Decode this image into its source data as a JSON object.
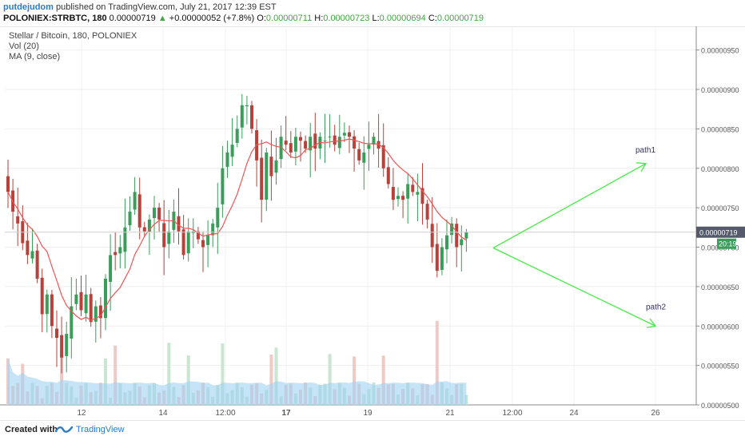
{
  "header": {
    "author": "putdejudom",
    "published_text": "published on TradingView.com, July 21, 2017 12:39 EST",
    "symbol": "POLONIEX:STRBTC, 180",
    "last": "0.00000719",
    "change_arrow": "▲",
    "change": "+0.00000052 (+7.8%)",
    "o_label": "O:",
    "o_value": "0.00000711",
    "h_label": "H:",
    "h_value": "0.00000723",
    "l_label": "L:",
    "l_value": "0.00000694",
    "c_label": "C:",
    "c_value": "0.00000719"
  },
  "legend": {
    "title": "Stellar / Bitcoin, 180, POLONIEX",
    "vol": "Vol (20)",
    "ma": "MA (9, close)"
  },
  "footer": {
    "created_with": "Created with",
    "brand": "TradingView"
  },
  "colors": {
    "up": "#3a9d5a",
    "down": "#b7423b",
    "ma": "#f05454",
    "vol_area": "#9ed2f2",
    "vol_up": "#c9e6d2",
    "vol_down": "#efc9c5",
    "arrow": "#44ee44",
    "price_tag": "#555a6b"
  },
  "chart_data": {
    "type": "candlestick",
    "interval": "180",
    "y_axis": {
      "ticks": [
        "0.00000950",
        "0.00000900",
        "0.00000850",
        "0.00000800",
        "0.00000750",
        "0.00000700",
        "0.00000650",
        "0.00000600",
        "0.00000550",
        "0.00000500"
      ],
      "range": [
        5e-06,
        9.8e-06
      ]
    },
    "x_axis": {
      "ticks": [
        "12",
        "14",
        "12:00",
        "17",
        "19",
        "21",
        "12:00",
        "24",
        "26"
      ]
    },
    "last_price_label": "0.00000719",
    "countdown_label": "20:19",
    "ohlc_last": {
      "open": 7.11e-06,
      "high": 7.23e-06,
      "low": 6.94e-06,
      "close": 7.19e-06
    },
    "close_series": [
      7.7e-06,
      7.45e-06,
      7.3e-06,
      7.05e-06,
      6.9e-06,
      6.95e-06,
      6.6e-06,
      6.15e-06,
      6.4e-06,
      6e-06,
      5.85e-06,
      5.6e-06,
      5.9e-06,
      6.25e-06,
      6.4e-06,
      6.2e-06,
      6.4e-06,
      6.05e-06,
      6.25e-06,
      6.1e-06,
      6.6e-06,
      6.9e-06,
      6.9e-06,
      7e-06,
      7.25e-06,
      7.45e-06,
      7.7e-06,
      7.25e-06,
      7.2e-06,
      7.35e-06,
      7.5e-06,
      7.35e-06,
      7e-06,
      7.2e-06,
      7.45e-06,
      7.2e-06,
      6.9e-06,
      7.2e-06,
      7.2e-06,
      7.1e-06,
      7e-06,
      7.15e-06,
      7.3e-06,
      7.5e-06,
      8e-06,
      8.2e-06,
      8.3e-06,
      8.5e-06,
      8.8e-06,
      8.8e-06,
      8.5e-06,
      8.1e-06,
      7.6e-06,
      8.2e-06,
      7.9e-06,
      8.1e-06,
      8.4e-06,
      8.3e-06,
      8.2e-06,
      8.4e-06,
      8.35e-06,
      8.25e-06,
      8.4e-06,
      8.25e-06,
      8.4e-06,
      8.35e-06,
      8.4e-06,
      8.3e-06,
      8.4e-06,
      8.45e-06,
      8.4e-06,
      8.25e-06,
      8.1e-06,
      8.2e-06,
      8.3e-06,
      8.4e-06,
      8.25e-06,
      8e-06,
      7.8e-06,
      7.6e-06,
      7.65e-06,
      7.6e-06,
      7.8e-06,
      7.7e-06,
      7.7e-06,
      7.55e-06,
      7.35e-06,
      7e-06,
      6.7e-06,
      7e-06,
      7.15e-06,
      7.3e-06,
      7e-06,
      7.1e-06,
      7.19e-06
    ],
    "series": [
      {
        "name": "Vol (20)",
        "kind": "volume"
      },
      {
        "name": "MA (9, close)",
        "kind": "line"
      }
    ],
    "annotations": [
      {
        "text": "path1",
        "direction": "up"
      },
      {
        "text": "path2",
        "direction": "down"
      }
    ]
  }
}
